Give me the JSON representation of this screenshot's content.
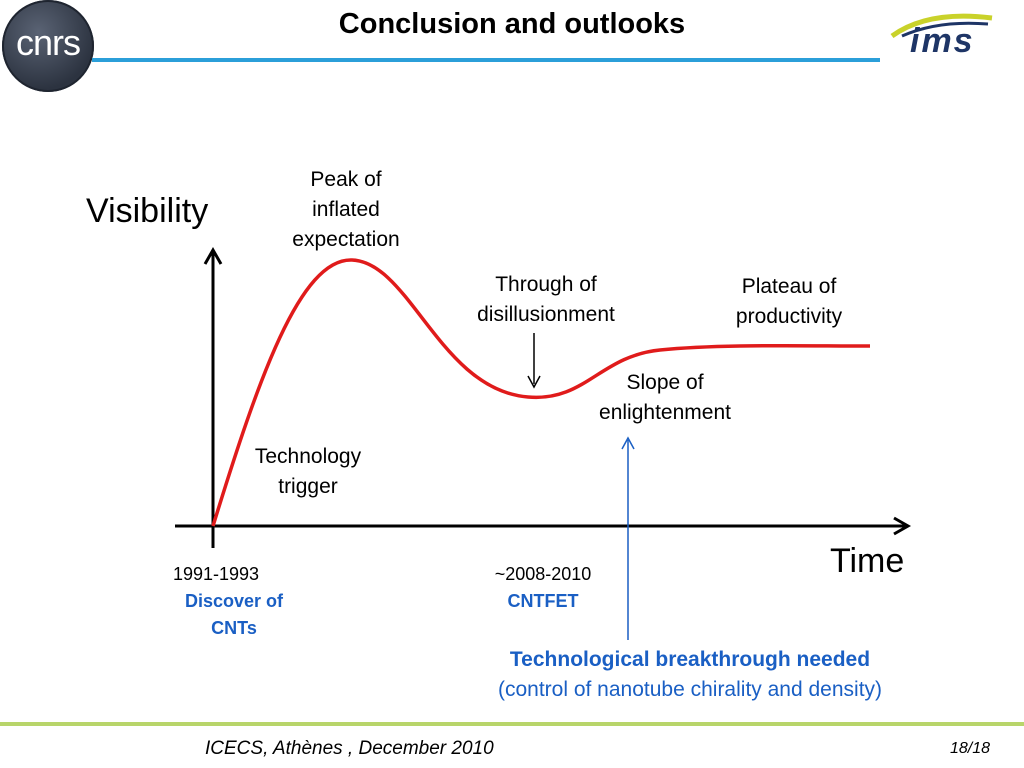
{
  "header": {
    "title": "Conclusion and outlooks",
    "logo_left_text": "cnrs",
    "logo_right_text": "ims"
  },
  "diagram": {
    "y_axis_label": "Visibility",
    "x_axis_label": "Time",
    "phases": {
      "peak": "Peak of inflated expectation",
      "trough": "Through of disillusionment",
      "plateau": "Plateau of productivity",
      "slope": "Slope of enlightenment",
      "trigger": "Technology trigger"
    },
    "milestones": [
      {
        "date": "1991-1993",
        "event": "Discover of CNTs"
      },
      {
        "date": "~2008-2010",
        "event": "CNTFET"
      }
    ],
    "note": {
      "headline": "Technological breakthrough needed",
      "detail": "(control of nanotube chirality and density)"
    },
    "colors": {
      "curve": "#e01b1b",
      "accent_blue": "#1a5fc4",
      "header_line": "#2b9fd9",
      "footer_line": "#b8d56a"
    }
  },
  "footer": {
    "conference": "ICECS, Athènes , December 2010",
    "page": "18/18"
  }
}
